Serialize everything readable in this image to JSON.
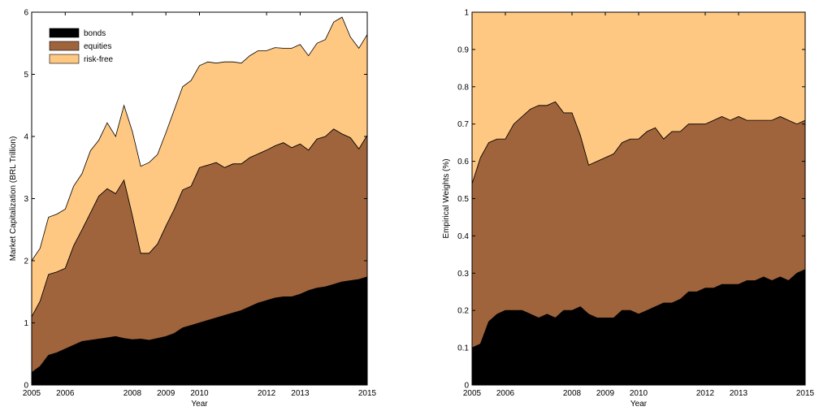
{
  "colors": {
    "bonds": "#000000",
    "equities": "#A0643C",
    "risk_free": "#FFC882",
    "axis": "#000000",
    "background": "#FFFFFF"
  },
  "chart_data": [
    {
      "type": "area",
      "stacked": true,
      "xlabel": "Year",
      "ylabel": "Market Capitalization (BRL Trillion)",
      "xlim": [
        2005,
        2015
      ],
      "ylim": [
        0,
        6
      ],
      "grid": false,
      "legend_position": "top-left",
      "x_tick_labels": [
        "2005",
        "2006",
        "2008",
        "2009",
        "2010",
        "2012",
        "2013",
        "2015"
      ],
      "x_tick_values": [
        2005,
        2006,
        2008,
        2009,
        2010,
        2012,
        2013,
        2015
      ],
      "y_tick_labels": [
        "0",
        "1",
        "2",
        "3",
        "4",
        "5",
        "6"
      ],
      "y_tick_values": [
        0,
        1,
        2,
        3,
        4,
        5,
        6
      ],
      "x": [
        2005,
        2005.25,
        2005.5,
        2005.75,
        2006,
        2006.25,
        2006.5,
        2006.75,
        2007,
        2007.25,
        2007.5,
        2007.75,
        2008,
        2008.25,
        2008.5,
        2008.75,
        2009,
        2009.25,
        2009.5,
        2009.75,
        2010,
        2010.25,
        2010.5,
        2010.75,
        2011,
        2011.25,
        2011.5,
        2011.75,
        2012,
        2012.25,
        2012.5,
        2012.75,
        2013,
        2013.25,
        2013.5,
        2013.75,
        2014,
        2014.25,
        2014.5,
        2014.75,
        2015
      ],
      "series": [
        {
          "name": "bonds",
          "values": [
            0.2,
            0.3,
            0.48,
            0.52,
            0.58,
            0.64,
            0.7,
            0.72,
            0.74,
            0.76,
            0.78,
            0.75,
            0.73,
            0.74,
            0.72,
            0.75,
            0.78,
            0.83,
            0.92,
            0.96,
            1.0,
            1.04,
            1.08,
            1.12,
            1.16,
            1.2,
            1.26,
            1.32,
            1.36,
            1.4,
            1.42,
            1.42,
            1.46,
            1.52,
            1.56,
            1.58,
            1.62,
            1.66,
            1.68,
            1.7,
            1.74
          ]
        },
        {
          "name": "equities",
          "values": [
            0.9,
            1.05,
            1.3,
            1.3,
            1.3,
            1.6,
            1.8,
            2.05,
            2.3,
            2.4,
            2.3,
            2.55,
            2.0,
            1.38,
            1.4,
            1.52,
            1.78,
            2.0,
            2.22,
            2.24,
            2.5,
            2.5,
            2.5,
            2.38,
            2.4,
            2.36,
            2.4,
            2.4,
            2.42,
            2.45,
            2.48,
            2.4,
            2.42,
            2.26,
            2.4,
            2.42,
            2.5,
            2.38,
            2.3,
            2.1,
            2.28
          ]
        },
        {
          "name": "risk-free",
          "values": [
            0.9,
            0.85,
            0.92,
            0.93,
            0.95,
            0.96,
            0.9,
            1.0,
            0.9,
            1.06,
            0.92,
            1.2,
            1.35,
            1.4,
            1.46,
            1.44,
            1.5,
            1.6,
            1.66,
            1.7,
            1.64,
            1.66,
            1.6,
            1.7,
            1.64,
            1.62,
            1.64,
            1.66,
            1.6,
            1.58,
            1.52,
            1.6,
            1.6,
            1.52,
            1.54,
            1.56,
            1.72,
            1.88,
            1.62,
            1.62,
            1.62
          ]
        }
      ]
    },
    {
      "type": "area",
      "stacked": true,
      "xlabel": "Year",
      "ylabel": "Empirical Weights (%)",
      "xlim": [
        2005,
        2015
      ],
      "ylim": [
        0,
        1
      ],
      "grid": false,
      "legend_position": "none",
      "x_tick_labels": [
        "2005",
        "2006",
        "2008",
        "2009",
        "2010",
        "2012",
        "2013",
        "2015"
      ],
      "x_tick_values": [
        2005,
        2006,
        2008,
        2009,
        2010,
        2012,
        2013,
        2015
      ],
      "y_tick_labels": [
        "0",
        "0.1",
        "0.2",
        "0.3",
        "0.4",
        "0.5",
        "0.6",
        "0.7",
        "0.8",
        "0.9",
        "1"
      ],
      "y_tick_values": [
        0,
        0.1,
        0.2,
        0.3,
        0.4,
        0.5,
        0.6,
        0.7,
        0.8,
        0.9,
        1
      ],
      "x": [
        2005,
        2005.25,
        2005.5,
        2005.75,
        2006,
        2006.25,
        2006.5,
        2006.75,
        2007,
        2007.25,
        2007.5,
        2007.75,
        2008,
        2008.25,
        2008.5,
        2008.75,
        2009,
        2009.25,
        2009.5,
        2009.75,
        2010,
        2010.25,
        2010.5,
        2010.75,
        2011,
        2011.25,
        2011.5,
        2011.75,
        2012,
        2012.25,
        2012.5,
        2012.75,
        2013,
        2013.25,
        2013.5,
        2013.75,
        2014,
        2014.25,
        2014.5,
        2014.75,
        2015
      ],
      "series": [
        {
          "name": "bonds",
          "values": [
            0.1,
            0.11,
            0.17,
            0.19,
            0.2,
            0.2,
            0.2,
            0.19,
            0.18,
            0.19,
            0.18,
            0.2,
            0.2,
            0.21,
            0.19,
            0.18,
            0.18,
            0.18,
            0.2,
            0.2,
            0.19,
            0.2,
            0.21,
            0.22,
            0.22,
            0.23,
            0.25,
            0.25,
            0.26,
            0.26,
            0.27,
            0.27,
            0.27,
            0.28,
            0.28,
            0.29,
            0.28,
            0.29,
            0.28,
            0.3,
            0.31
          ]
        },
        {
          "name": "equities",
          "values": [
            0.44,
            0.5,
            0.48,
            0.47,
            0.46,
            0.5,
            0.52,
            0.55,
            0.57,
            0.56,
            0.58,
            0.53,
            0.53,
            0.46,
            0.4,
            0.42,
            0.43,
            0.44,
            0.45,
            0.46,
            0.47,
            0.48,
            0.48,
            0.44,
            0.46,
            0.45,
            0.45,
            0.45,
            0.44,
            0.45,
            0.45,
            0.44,
            0.45,
            0.43,
            0.43,
            0.42,
            0.43,
            0.43,
            0.43,
            0.4,
            0.4
          ]
        },
        {
          "name": "risk-free",
          "values": [
            0.46,
            0.39,
            0.35,
            0.34,
            0.34,
            0.3,
            0.28,
            0.26,
            0.25,
            0.25,
            0.24,
            0.27,
            0.27,
            0.33,
            0.41,
            0.4,
            0.39,
            0.38,
            0.35,
            0.34,
            0.34,
            0.32,
            0.31,
            0.34,
            0.32,
            0.32,
            0.3,
            0.3,
            0.3,
            0.29,
            0.28,
            0.29,
            0.28,
            0.29,
            0.29,
            0.29,
            0.29,
            0.28,
            0.29,
            0.3,
            0.29
          ]
        }
      ]
    }
  ]
}
